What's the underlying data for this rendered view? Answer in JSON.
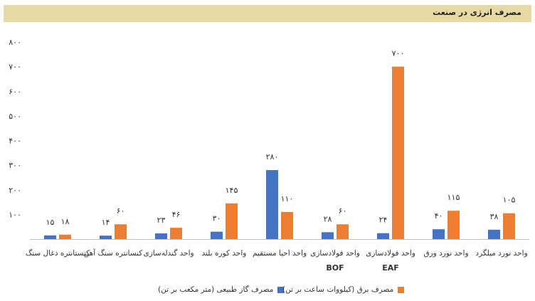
{
  "header": {
    "title": "مصرف انرژی در صنعت"
  },
  "colors": {
    "gas": "#4472c4",
    "electricity": "#ed7d31",
    "header_bg": "#e8d9a4"
  },
  "chart_data": {
    "type": "bar",
    "title": "مصرف انرژی در صنعت",
    "xlabel": "",
    "ylabel": "",
    "ylim": [
      0,
      800
    ],
    "yticks": [
      0,
      100,
      200,
      300,
      400,
      500,
      600,
      700,
      800
    ],
    "ytick_labels": [
      "",
      "۱۰۰",
      "۲۰۰",
      "۳۰۰",
      "۴۰۰",
      "۵۰۰",
      "۶۰۰",
      "۷۰۰",
      "۸۰۰"
    ],
    "grid": false,
    "legend_position": "bottom",
    "categories": [
      "کنستانتره ذغال سنگ",
      "کنسانتره سنگ آهن",
      "واحد گندله‌سازی",
      "واحد کوره بلند",
      "واحد احیا مستقیم",
      "واحد فولادسازی BOF",
      "واحد فولادسازی EAF",
      "واحد نورد ورق",
      "واحد نورد میلگرد"
    ],
    "category_lines": [
      [
        "کنستانتره ذغال سنگ"
      ],
      [
        "کنسانتره سنگ آهن"
      ],
      [
        "واحد گندله‌سازی"
      ],
      [
        "واحد کوره بلند"
      ],
      [
        "واحد احیا مستقیم"
      ],
      [
        "واحد فولادسازی",
        "BOF"
      ],
      [
        "واحد فولادسازی",
        "EAF"
      ],
      [
        "واحد نورد ورق"
      ],
      [
        "واحد نورد میلگرد"
      ]
    ],
    "series": [
      {
        "name": "مصرف گاز طبیعی (متر مکعب بر تن)",
        "values": [
          15,
          14,
          23,
          30,
          280,
          28,
          24,
          40,
          38
        ],
        "labels": [
          "۱۵",
          "۱۴",
          "۲۳",
          "۳۰",
          "۲۸۰",
          "۲۸",
          "۲۴",
          "۴۰",
          "۳۸"
        ]
      },
      {
        "name": "مصرف برق (کیلووات ساعت بر تن)",
        "values": [
          18,
          60,
          46,
          145,
          110,
          60,
          700,
          115,
          105
        ],
        "labels": [
          "۱۸",
          "۶۰",
          "۴۶",
          "۱۴۵",
          "۱۱۰",
          "۶۰",
          "۷۰۰",
          "۱۱۵",
          "۱۰۵"
        ]
      }
    ]
  }
}
